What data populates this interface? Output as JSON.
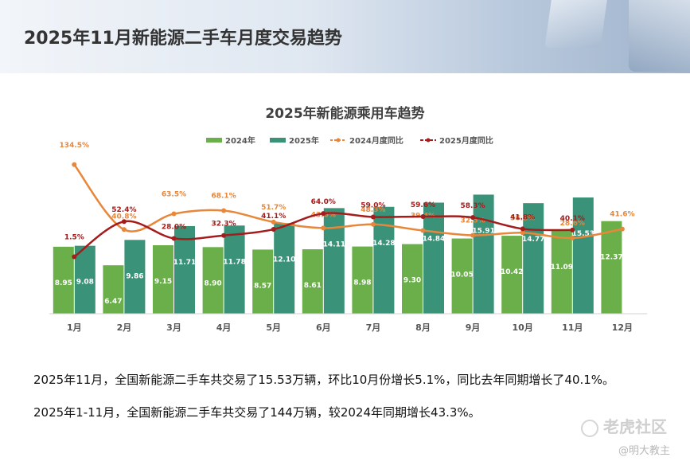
{
  "header": {
    "title": "2025年11月新能源二手车月度交易趋势"
  },
  "chart_data": {
    "type": "bar",
    "title": "2025年新能源乘用车趋势",
    "categories": [
      "1月",
      "2月",
      "3月",
      "4月",
      "5月",
      "6月",
      "7月",
      "8月",
      "9月",
      "10月",
      "11月",
      "12月"
    ],
    "series": [
      {
        "name": "2024年",
        "kind": "bar",
        "color": "#6aaf4a",
        "values": [
          8.95,
          6.47,
          9.15,
          8.9,
          8.57,
          8.61,
          8.98,
          9.3,
          10.05,
          10.42,
          11.09,
          12.37
        ],
        "labels": [
          "8.95",
          "6.47",
          "9.15",
          "8.90",
          "8.57",
          "8.61",
          "8.98",
          "9.30",
          "10.05",
          "10.42",
          "11.09",
          "12.37"
        ]
      },
      {
        "name": "2025年",
        "kind": "bar",
        "color": "#3a9278",
        "values": [
          9.08,
          9.86,
          11.71,
          11.78,
          12.1,
          14.11,
          14.28,
          14.84,
          15.91,
          14.77,
          15.53,
          null
        ],
        "labels": [
          "9.08",
          "9.86",
          "11.71",
          "11.78",
          "12.10",
          "14.11",
          "14.28",
          "14.84",
          "15.91",
          "14.77",
          "15.53",
          null
        ]
      },
      {
        "name": "2024月度同比",
        "kind": "line",
        "color": "#e8863a",
        "values": [
          134.5,
          40.8,
          63.5,
          68.1,
          51.7,
          43.0,
          48.3,
          39.4,
          32.5,
          36.2,
          28.6,
          41.6
        ],
        "labels": [
          "134.5%",
          "40.8%",
          "63.5%",
          "68.1%",
          "51.7%",
          "43.0%",
          "48.3%",
          "39.4%",
          "32.5%",
          "36.2%",
          "28.6%",
          "41.6%"
        ]
      },
      {
        "name": "2025月度同比",
        "kind": "line",
        "color": "#a51c1c",
        "values": [
          1.5,
          52.4,
          28.0,
          32.3,
          41.1,
          64.0,
          59.0,
          59.6,
          58.3,
          41.8,
          40.1,
          null
        ],
        "labels": [
          "1.5%",
          "52.4%",
          "28.0%",
          "32.3%",
          "41.1%",
          "64.0%",
          "59.0%",
          "59.6%",
          "58.3%",
          "41.8%",
          "40.1%",
          null
        ]
      }
    ],
    "legend_position": "top-center",
    "grid": false
  },
  "text": {
    "para1": "2025年11月，全国新能源二手车共交易了15.53万辆，环比10月份增长5.1%，同比去年同期增长了40.1%。",
    "para2": "2025年1-11月，全国新能源二手车共交易了144万辆，较2024年同期增长43.3%。"
  },
  "watermark": {
    "brand": "老虎社区",
    "user": "@明大教主"
  }
}
